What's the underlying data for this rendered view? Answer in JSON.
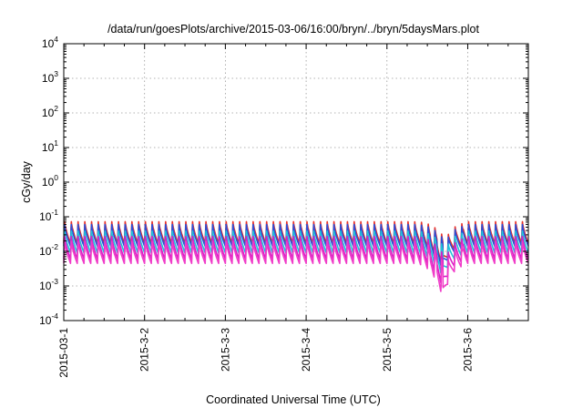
{
  "chart_data": {
    "type": "line",
    "title": "/data/run/goesPlots/archive/2015-03-06/16:00/bryn/../bryn/5daysMars.plot",
    "xlabel": "Coordinated Universal Time (UTC)",
    "ylabel": "cGy/day",
    "xlim": [
      "2015-03-01",
      "2015-03-06T18:00"
    ],
    "ylim": [
      0.0001,
      10000
    ],
    "yscale": "log",
    "grid": true,
    "x_ticks": [
      {
        "date": "2015-03-01",
        "label": "2015-03-1"
      },
      {
        "date": "2015-03-02",
        "label": "2015-3-2"
      },
      {
        "date": "2015-03-03",
        "label": "2015-3-3"
      },
      {
        "date": "2015-03-04",
        "label": "2015-3-4"
      },
      {
        "date": "2015-03-05",
        "label": "2015-3-5"
      },
      {
        "date": "2015-03-06",
        "label": "2015-3-6"
      }
    ],
    "y_ticks": [
      {
        "value": 0.0001,
        "base": "10",
        "exp": "-4"
      },
      {
        "value": 0.001,
        "base": "10",
        "exp": "-3"
      },
      {
        "value": 0.01,
        "base": "10",
        "exp": "-2"
      },
      {
        "value": 0.1,
        "base": "10",
        "exp": "-1"
      },
      {
        "value": 1,
        "base": "10",
        "exp": "0"
      },
      {
        "value": 10,
        "base": "10",
        "exp": "1"
      },
      {
        "value": 100,
        "base": "10",
        "exp": "2"
      },
      {
        "value": 1000,
        "base": "10",
        "exp": "3"
      },
      {
        "value": 10000,
        "base": "10",
        "exp": "4"
      }
    ],
    "series": [
      {
        "color": "#e8302a",
        "pattern": "sawtooth",
        "peak": 0.075,
        "trough": 0.017,
        "cycles_per_day": 12,
        "dip": {
          "date": "2015-03-05T16:40",
          "min": 0.003
        }
      },
      {
        "color": "#2c4fd6",
        "pattern": "sawtooth",
        "peak": 0.062,
        "trough": 0.014,
        "cycles_per_day": 12,
        "dip": {
          "date": "2015-03-05T16:40",
          "min": 0.0025
        }
      },
      {
        "color": "#20c4d8",
        "pattern": "sawtooth",
        "peak": 0.04,
        "trough": 0.009,
        "cycles_per_day": 12,
        "dip": {
          "date": "2015-03-05T16:40",
          "min": 0.0015
        }
      },
      {
        "color": "#d81ec6",
        "pattern": "sawtooth",
        "peak": 0.028,
        "trough": 0.006,
        "cycles_per_day": 12,
        "dip": {
          "date": "2015-03-05T16:40",
          "min": 0.0007
        }
      },
      {
        "color": "#f03cc8",
        "pattern": "sawtooth",
        "peak": 0.02,
        "trough": 0.0045,
        "cycles_per_day": 12,
        "dip": {
          "date": "2015-03-05T16:40",
          "min": 0.00035
        }
      }
    ]
  }
}
